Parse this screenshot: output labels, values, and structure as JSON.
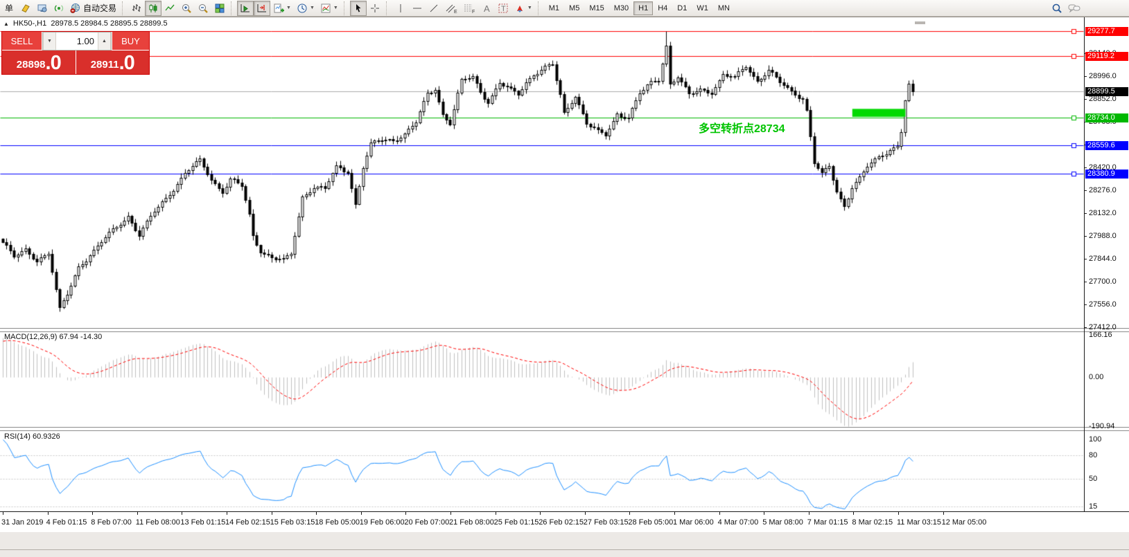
{
  "toolbar": {
    "order_label": "单",
    "autotrade_label": "自动交易",
    "timeframes": [
      "M1",
      "M5",
      "M15",
      "M30",
      "H1",
      "H4",
      "D1",
      "W1",
      "MN"
    ],
    "active_timeframe": "H1"
  },
  "chart": {
    "collapse_glyph": "▲",
    "title": "HK50-,H1",
    "ohlc": "28978.5 28984.5 28895.5 28899.5"
  },
  "trade_panel": {
    "sell_label": "SELL",
    "buy_label": "BUY",
    "volume": "1.00",
    "stepper_down": "▼",
    "stepper_up": "▲",
    "sell_price_main": "28898",
    "sell_price_pips": ".0",
    "buy_price_main": "28911",
    "buy_price_pips": ".0"
  },
  "annotation": {
    "text": "多空转折点28734",
    "color": "#00c400"
  },
  "macd": {
    "label": "MACD(12,26,9) 67.94 -14.30",
    "ticks": [
      {
        "v": 166.16,
        "label": "166.16"
      },
      {
        "v": 0,
        "label": "0.00"
      },
      {
        "v": -190.94,
        "label": "-190.94"
      }
    ]
  },
  "rsi": {
    "label": "RSI(14) 60.9326",
    "ticks": [
      {
        "v": 100,
        "label": "100"
      },
      {
        "v": 80,
        "label": "80"
      },
      {
        "v": 50,
        "label": "50"
      },
      {
        "v": 15,
        "label": "15"
      }
    ],
    "dashed_levels": [
      80,
      50,
      15
    ]
  },
  "chart_data": {
    "type": "candlestick",
    "symbol": "HK50-",
    "timeframe": "H1",
    "bars": 241,
    "last_close": 28899.5,
    "visible_price_range": [
      27416,
      29365
    ],
    "price_ticks": [
      {
        "p": 29140.0,
        "label": "29140.0"
      },
      {
        "p": 28996.0,
        "label": "28996.0"
      },
      {
        "p": 28852.0,
        "label": "28852.0"
      },
      {
        "p": 28708.0,
        "label": "28708.0"
      },
      {
        "p": 28564.0,
        "label": "28564.0"
      },
      {
        "p": 28420.0,
        "label": "28420.0"
      },
      {
        "p": 28276.0,
        "label": "28276.0"
      },
      {
        "p": 28132.0,
        "label": "28132.0"
      },
      {
        "p": 27988.0,
        "label": "27988.0"
      },
      {
        "p": 27844.0,
        "label": "27844.0"
      },
      {
        "p": 27700.0,
        "label": "27700.0"
      },
      {
        "p": 27556.0,
        "label": "27556.0"
      },
      {
        "p": 27412.0,
        "label": "27412.0"
      }
    ],
    "levels": [
      {
        "price": 29277.7,
        "label": "29277.7",
        "color": "#ff0000",
        "handle": true
      },
      {
        "price": 29119.2,
        "label": "29119.2",
        "color": "#ff0000",
        "handle": true
      },
      {
        "price": 28734.0,
        "label": "28734.0",
        "color": "#00b800",
        "handle": true
      },
      {
        "price": 28559.6,
        "label": "28559.6",
        "color": "#0000ff",
        "handle": true
      },
      {
        "price": 28380.9,
        "label": "28380.9",
        "color": "#0000ff",
        "handle": true
      }
    ],
    "current_price": {
      "price": 28899.5,
      "label": "28899.5",
      "line_color": "#aaaaaa",
      "bg": "#000000"
    },
    "highlight_rect": {
      "bar_start": 224,
      "bar_end": 238,
      "price_top": 28790,
      "price_bottom": 28740,
      "color": "#00d900"
    },
    "spike": {
      "bar": 175,
      "high": 29277.7
    },
    "warmup": {
      "bars": 30,
      "start_price": 27150
    },
    "price_path": [
      [
        0,
        27950
      ],
      [
        3,
        27850
      ],
      [
        6,
        27900
      ],
      [
        9,
        27840
      ],
      [
        12,
        27880
      ],
      [
        14,
        27640
      ],
      [
        15,
        27520
      ],
      [
        17,
        27620
      ],
      [
        20,
        27800
      ],
      [
        24,
        27890
      ],
      [
        28,
        28000
      ],
      [
        33,
        28120
      ],
      [
        36,
        27990
      ],
      [
        40,
        28140
      ],
      [
        45,
        28290
      ],
      [
        48,
        28380
      ],
      [
        52,
        28460
      ],
      [
        55,
        28350
      ],
      [
        58,
        28270
      ],
      [
        60,
        28340
      ],
      [
        63,
        28300
      ],
      [
        65,
        28120
      ],
      [
        66,
        27990
      ],
      [
        68,
        27900
      ],
      [
        71,
        27850
      ],
      [
        74,
        27830
      ],
      [
        76,
        27870
      ],
      [
        79,
        28240
      ],
      [
        82,
        28300
      ],
      [
        85,
        28280
      ],
      [
        88,
        28420
      ],
      [
        91,
        28400
      ],
      [
        93,
        28190
      ],
      [
        95,
        28420
      ],
      [
        97,
        28560
      ],
      [
        100,
        28590
      ],
      [
        103,
        28600
      ],
      [
        106,
        28630
      ],
      [
        109,
        28700
      ],
      [
        112,
        28880
      ],
      [
        114,
        28920
      ],
      [
        116,
        28760
      ],
      [
        118,
        28700
      ],
      [
        121,
        28960
      ],
      [
        124,
        28990
      ],
      [
        126,
        28900
      ],
      [
        128,
        28840
      ],
      [
        131,
        28950
      ],
      [
        134,
        28900
      ],
      [
        136,
        28880
      ],
      [
        138,
        28960
      ],
      [
        140,
        29010
      ],
      [
        143,
        29050
      ],
      [
        145,
        29060
      ],
      [
        147,
        28870
      ],
      [
        148,
        28760
      ],
      [
        151,
        28880
      ],
      [
        154,
        28700
      ],
      [
        157,
        28640
      ],
      [
        159,
        28620
      ],
      [
        162,
        28760
      ],
      [
        165,
        28740
      ],
      [
        168,
        28880
      ],
      [
        171,
        28950
      ],
      [
        173,
        28980
      ],
      [
        175,
        29190
      ],
      [
        176,
        28950
      ],
      [
        178,
        28990
      ],
      [
        181,
        28870
      ],
      [
        184,
        28910
      ],
      [
        187,
        28900
      ],
      [
        190,
        29000
      ],
      [
        193,
        28980
      ],
      [
        196,
        29060
      ],
      [
        199,
        28970
      ],
      [
        202,
        29030
      ],
      [
        205,
        28950
      ],
      [
        208,
        28900
      ],
      [
        211,
        28860
      ],
      [
        212,
        28780
      ],
      [
        214,
        28450
      ],
      [
        216,
        28370
      ],
      [
        218,
        28420
      ],
      [
        220,
        28270
      ],
      [
        222,
        28180
      ],
      [
        224,
        28300
      ],
      [
        226,
        28350
      ],
      [
        228,
        28420
      ],
      [
        230,
        28460
      ],
      [
        232,
        28500
      ],
      [
        234,
        28540
      ],
      [
        236,
        28560
      ],
      [
        237,
        28650
      ],
      [
        238,
        28840
      ],
      [
        239,
        28930
      ],
      [
        240,
        28899.5
      ]
    ],
    "indicators": [
      {
        "name": "MACD",
        "params": [
          12,
          26,
          9
        ],
        "values_shown": [
          67.94,
          -14.3
        ],
        "range": [
          -190.94,
          166.16
        ],
        "histogram_color": "#c0c0c0",
        "signal_color": "#ff0000",
        "signal_style": "dashed"
      },
      {
        "name": "RSI",
        "params": [
          14
        ],
        "value_shown": 60.9326,
        "line_color": "#1e90ff",
        "levels": [
          80,
          50,
          15
        ]
      }
    ],
    "time_labels": [
      "31 Jan 2019",
      "4 Feb 01:15",
      "8 Feb 07:00",
      "11 Feb 08:00",
      "13 Feb 01:15",
      "14 Feb 02:15",
      "15 Feb 03:15",
      "18 Feb 05:00",
      "19 Feb 06:00",
      "20 Feb 07:00",
      "21 Feb 08:00",
      "25 Feb 01:15",
      "26 Feb 02:15",
      "27 Feb 03:15",
      "28 Feb 05:00",
      "1 Mar 06:00",
      "4 Mar 07:00",
      "5 Mar 08:00",
      "7 Mar 01:15",
      "8 Mar 02:15",
      "11 Mar 03:15",
      "12 Mar 05:00"
    ]
  }
}
